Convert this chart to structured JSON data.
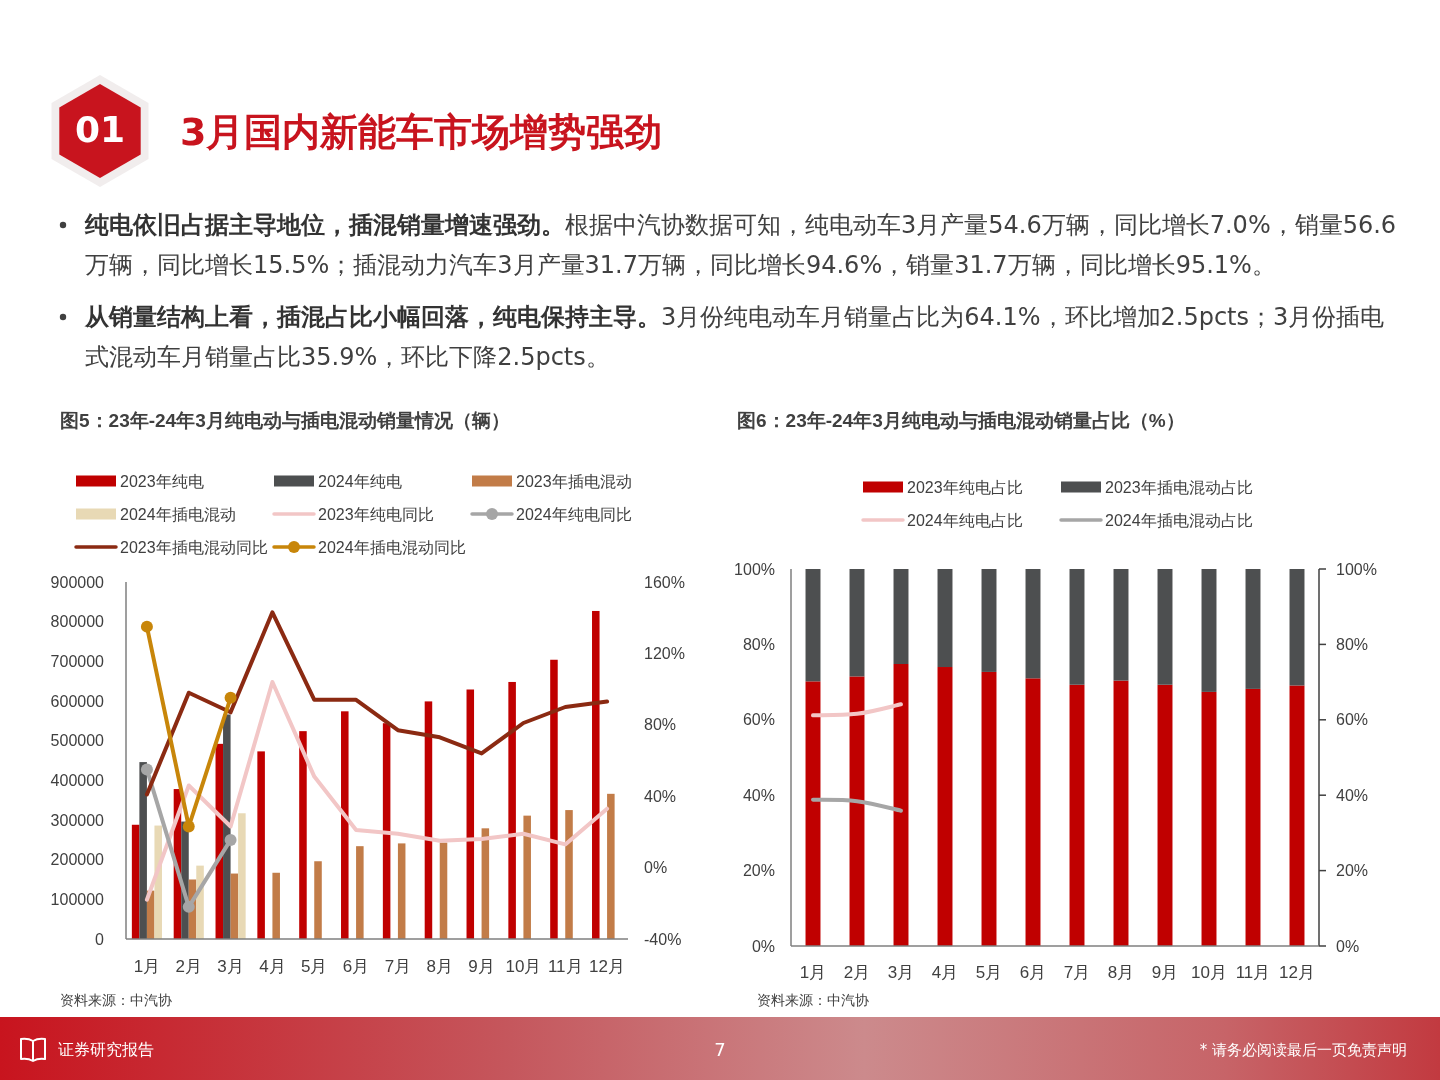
{
  "chart_data": [
    {
      "type": "other",
      "title": "3月国内新能车市场增势强劲",
      "annotations": [
        "01",
        "**纯电依旧占据主导地位，插混销量增速强劲。**根据中汽协数据可知，纯电动车3月产量54.6万辆，同比增长7.0%，销量56.6万辆，同比增长15.5%；插混动力汽车3月产量31.7万辆，同比增长94.6%，销量31.7万辆，同比增长95.1%。",
        "**从销量结构上看，插混占比小幅回落，纯电保持主导。**3月份纯电动车月销量占比为64.1%，环比增加2.5pcts；3月份插电式混动车月销量占比35.9%，环比下降2.5pcts。",
        "证券研究报告",
        "7",
        "* 请务必阅读最后一页免责声明"
      ]
    },
    {
      "type": "bar",
      "title": "图5：23年-24年3月纯电动与插电混动销量情况（辆）",
      "categories": [
        "1月",
        "2月",
        "3月",
        "4月",
        "5月",
        "6月",
        "7月",
        "8月",
        "9月",
        "10月",
        "11月",
        "12月"
      ],
      "series": [
        {
          "name": "2023年纯电",
          "color": "#c00000",
          "values": [
            288000,
            378000,
            492000,
            473000,
            524000,
            574000,
            544000,
            599000,
            629000,
            648000,
            704000,
            827000
          ]
        },
        {
          "name": "2024年纯电",
          "color": "#4d4f50",
          "values": [
            446000,
            296000,
            566000,
            null,
            null,
            null,
            null,
            null,
            null,
            null,
            null,
            null
          ]
        },
        {
          "name": "2023年插电混动",
          "color": "#c27c48",
          "values": [
            122000,
            150000,
            165000,
            167000,
            196000,
            234000,
            241000,
            243000,
            279000,
            311000,
            325000,
            366000
          ]
        },
        {
          "name": "2024年插电混动",
          "color": "#e8d9b5",
          "values": [
            286000,
            185000,
            317000,
            null,
            null,
            null,
            null,
            null,
            null,
            null,
            null,
            null
          ]
        },
        {
          "name": "2023年纯电同比",
          "type": "line",
          "axis": "y2",
          "color": "#f2c6c6",
          "values": [
            -18,
            46,
            23,
            104,
            51,
            21,
            19,
            15,
            16,
            19,
            13,
            33
          ]
        },
        {
          "name": "2024年纯电同比",
          "type": "line",
          "axis": "y2",
          "color": "#a6a6a6",
          "marker": "circle",
          "values": [
            55,
            -22,
            15.5,
            null,
            null,
            null,
            null,
            null,
            null,
            null,
            null,
            null
          ]
        },
        {
          "name": "2023年插电混动同比",
          "type": "line",
          "axis": "y2",
          "color": "#8b2a12",
          "values": [
            41,
            98,
            87,
            143,
            94,
            94,
            77,
            73,
            64,
            81,
            90,
            93
          ]
        },
        {
          "name": "2024年插电混动同比",
          "type": "line",
          "axis": "y2",
          "color": "#c8860a",
          "marker": "circle",
          "values": [
            135,
            23,
            95.1,
            null,
            null,
            null,
            null,
            null,
            null,
            null,
            null,
            null
          ]
        }
      ],
      "ylim": [
        0,
        900000
      ],
      "yticks": [
        0,
        100000,
        200000,
        300000,
        400000,
        500000,
        600000,
        700000,
        800000,
        900000
      ],
      "y2lim": [
        -40,
        160
      ],
      "y2ticks": [
        {
          "value": -40,
          "label": "-40%"
        },
        {
          "value": 0,
          "label": "0%"
        },
        {
          "value": 40,
          "label": "40%"
        },
        {
          "value": 80,
          "label": "80%"
        },
        {
          "value": 120,
          "label": "120%"
        },
        {
          "value": 160,
          "label": "160%"
        }
      ],
      "legend": "top",
      "annotations": [
        "资料来源：中汽协"
      ]
    },
    {
      "type": "bar",
      "stacked": true,
      "title": "图6：23年-24年3月纯电动与插电混动销量占比（%）",
      "categories": [
        "1月",
        "2月",
        "3月",
        "4月",
        "5月",
        "6月",
        "7月",
        "8月",
        "9月",
        "10月",
        "11月",
        "12月"
      ],
      "series": [
        {
          "name": "2023年纯电占比",
          "color": "#c00000",
          "values": [
            70.2,
            71.5,
            74.8,
            74.0,
            72.7,
            71.0,
            69.3,
            70.4,
            69.3,
            67.4,
            68.2,
            69.1
          ]
        },
        {
          "name": "2023年插电混动占比",
          "color": "#4d4f50",
          "values": [
            29.8,
            28.5,
            25.2,
            26.0,
            27.3,
            29.0,
            30.7,
            29.6,
            30.7,
            32.6,
            31.8,
            30.9
          ]
        },
        {
          "name": "2024年纯电占比",
          "type": "line",
          "color": "#f2c6c6",
          "values": [
            61.2,
            61.6,
            64.1,
            null,
            null,
            null,
            null,
            null,
            null,
            null,
            null,
            null
          ]
        },
        {
          "name": "2024年插电混动占比",
          "type": "line",
          "color": "#a6a6a6",
          "values": [
            38.8,
            38.4,
            35.9,
            null,
            null,
            null,
            null,
            null,
            null,
            null,
            null,
            null
          ]
        }
      ],
      "ylim": [
        0,
        100
      ],
      "yticks": [
        {
          "value": 0,
          "label": "0%"
        },
        {
          "value": 20,
          "label": "20%"
        },
        {
          "value": 40,
          "label": "40%"
        },
        {
          "value": 60,
          "label": "60%"
        },
        {
          "value": 80,
          "label": "80%"
        },
        {
          "value": 100,
          "label": "100%"
        }
      ],
      "y2lim": [
        0,
        100
      ],
      "y2ticks": [
        {
          "value": 0,
          "label": "0%"
        },
        {
          "value": 20,
          "label": "20%"
        },
        {
          "value": 40,
          "label": "40%"
        },
        {
          "value": 60,
          "label": "60%"
        },
        {
          "value": 80,
          "label": "80%"
        },
        {
          "value": 100,
          "label": "100%"
        }
      ],
      "legend": "top",
      "annotations": [
        "资料来源：中汽协"
      ]
    }
  ]
}
